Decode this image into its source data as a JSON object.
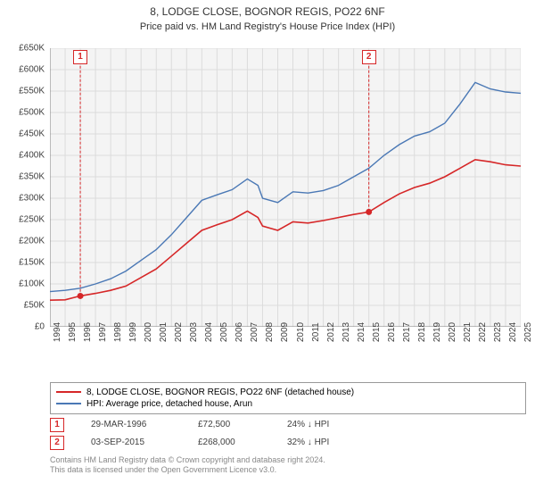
{
  "title": "8, LODGE CLOSE, BOGNOR REGIS, PO22 6NF",
  "subtitle": "Price paid vs. HM Land Registry's House Price Index (HPI)",
  "chart": {
    "type": "line",
    "background_color": "#f4f4f4",
    "grid_color": "#dcdcdc",
    "axis_color": "#808080",
    "ylim": [
      0,
      650
    ],
    "ytick_step": 50,
    "y_prefix": "£",
    "y_suffix": "K",
    "xlim": [
      1994,
      2025
    ],
    "xtick_step": 1,
    "series": [
      {
        "name": "property",
        "color": "#d62728",
        "width": 1.6,
        "data": [
          [
            1994,
            62
          ],
          [
            1995,
            63
          ],
          [
            1996,
            72
          ],
          [
            1997,
            78
          ],
          [
            1998,
            85
          ],
          [
            1999,
            95
          ],
          [
            2000,
            115
          ],
          [
            2001,
            135
          ],
          [
            2002,
            165
          ],
          [
            2003,
            195
          ],
          [
            2004,
            225
          ],
          [
            2005,
            238
          ],
          [
            2006,
            250
          ],
          [
            2007,
            270
          ],
          [
            2007.7,
            255
          ],
          [
            2008,
            235
          ],
          [
            2009,
            225
          ],
          [
            2010,
            245
          ],
          [
            2011,
            242
          ],
          [
            2012,
            248
          ],
          [
            2013,
            255
          ],
          [
            2014,
            262
          ],
          [
            2015,
            268
          ],
          [
            2016,
            290
          ],
          [
            2017,
            310
          ],
          [
            2018,
            325
          ],
          [
            2019,
            335
          ],
          [
            2020,
            350
          ],
          [
            2021,
            370
          ],
          [
            2022,
            390
          ],
          [
            2023,
            385
          ],
          [
            2024,
            378
          ],
          [
            2025,
            375
          ]
        ]
      },
      {
        "name": "hpi",
        "color": "#4a78b5",
        "width": 1.4,
        "data": [
          [
            1994,
            82
          ],
          [
            1995,
            85
          ],
          [
            1996,
            90
          ],
          [
            1997,
            100
          ],
          [
            1998,
            112
          ],
          [
            1999,
            130
          ],
          [
            2000,
            155
          ],
          [
            2001,
            180
          ],
          [
            2002,
            215
          ],
          [
            2003,
            255
          ],
          [
            2004,
            295
          ],
          [
            2005,
            308
          ],
          [
            2006,
            320
          ],
          [
            2007,
            345
          ],
          [
            2007.7,
            330
          ],
          [
            2008,
            300
          ],
          [
            2009,
            290
          ],
          [
            2010,
            315
          ],
          [
            2011,
            312
          ],
          [
            2012,
            318
          ],
          [
            2013,
            330
          ],
          [
            2014,
            350
          ],
          [
            2015,
            370
          ],
          [
            2016,
            400
          ],
          [
            2017,
            425
          ],
          [
            2018,
            445
          ],
          [
            2019,
            455
          ],
          [
            2020,
            475
          ],
          [
            2021,
            520
          ],
          [
            2022,
            570
          ],
          [
            2023,
            555
          ],
          [
            2024,
            548
          ],
          [
            2025,
            545
          ]
        ]
      }
    ],
    "markers": [
      {
        "id": "1",
        "x": 1996,
        "y_top": 640,
        "point_y": 72,
        "color": "#d62728"
      },
      {
        "id": "2",
        "x": 2015,
        "y_top": 640,
        "point_y": 268,
        "color": "#d62728"
      }
    ]
  },
  "legend": {
    "items": [
      {
        "color": "#d62728",
        "label": "8, LODGE CLOSE, BOGNOR REGIS, PO22 6NF (detached house)"
      },
      {
        "color": "#4a78b5",
        "label": "HPI: Average price, detached house, Arun"
      }
    ]
  },
  "sales": [
    {
      "id": "1",
      "color": "#d62728",
      "date": "29-MAR-1996",
      "price": "£72,500",
      "diff": "24% ↓ HPI"
    },
    {
      "id": "2",
      "color": "#d62728",
      "date": "03-SEP-2015",
      "price": "£268,000",
      "diff": "32% ↓ HPI"
    }
  ],
  "footer_line1": "Contains HM Land Registry data © Crown copyright and database right 2024.",
  "footer_line2": "This data is licensed under the Open Government Licence v3.0."
}
